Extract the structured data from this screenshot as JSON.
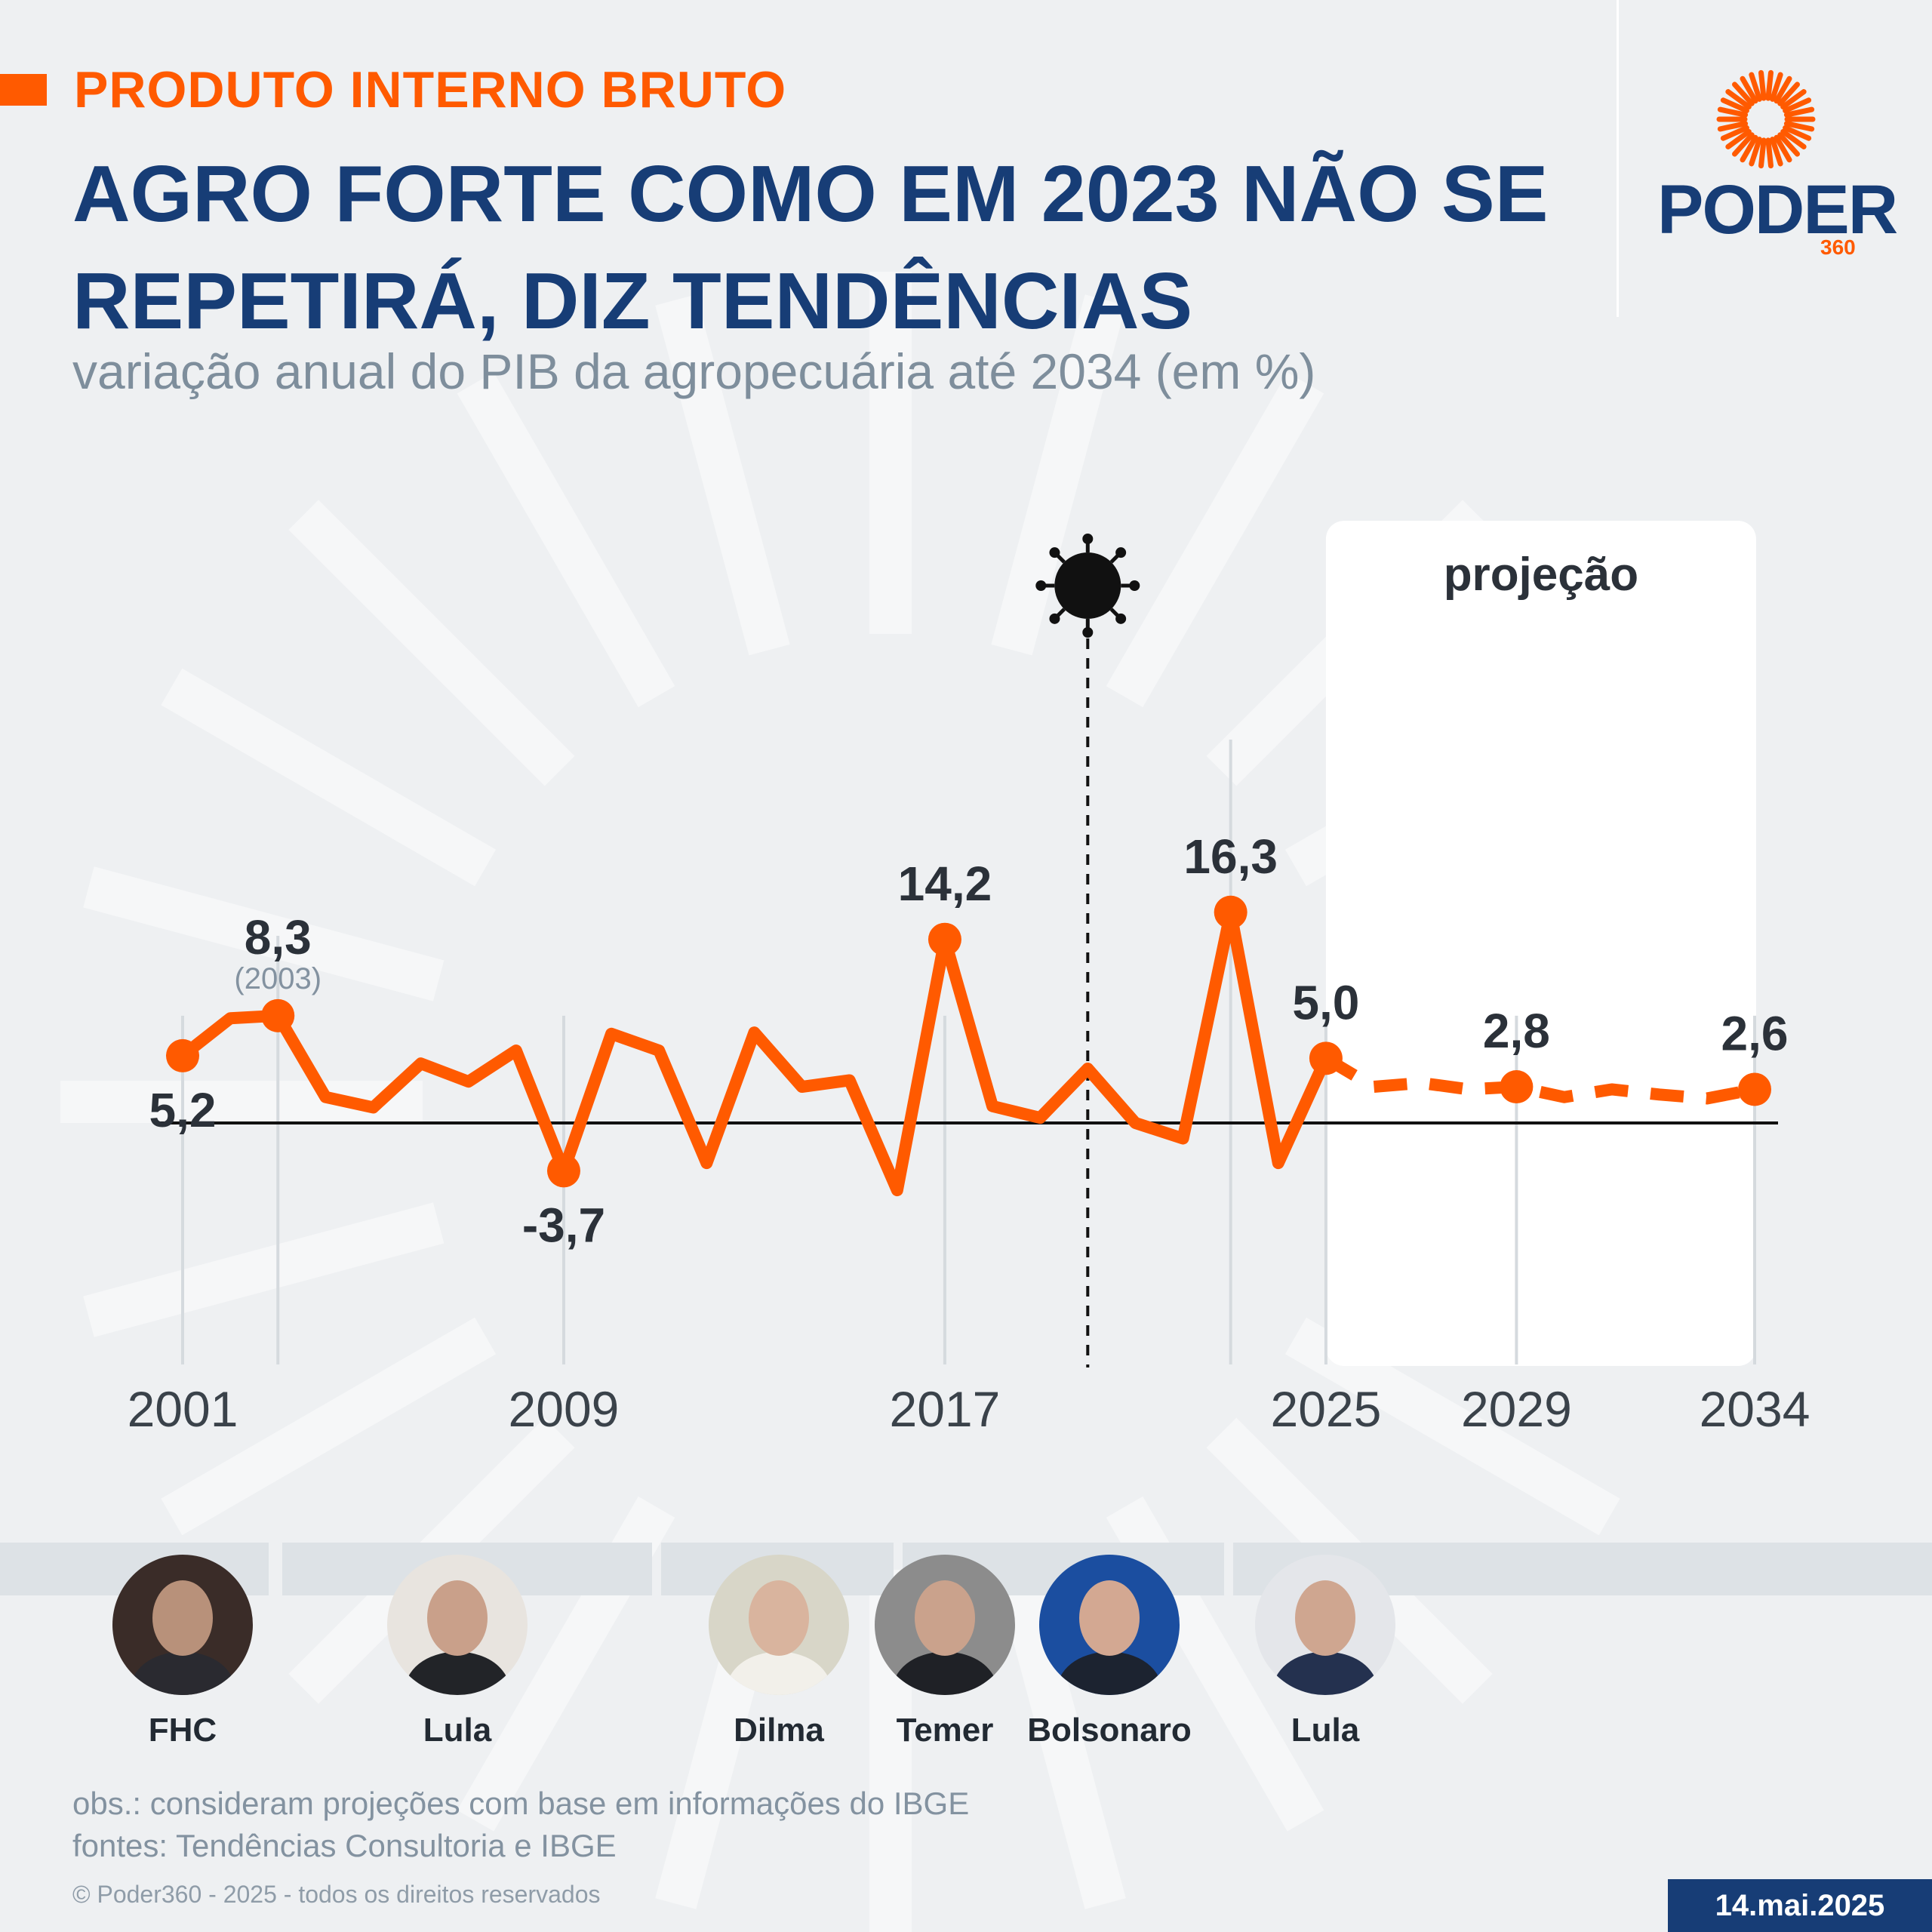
{
  "header": {
    "kicker": "PRODUTO INTERNO BRUTO",
    "title": "AGRO FORTE COMO EM 2023 NÃO SE REPETIRÁ, DIZ TENDÊNCIAS",
    "subtitle": "variação anual do PIB da agropecuária até 2034 (em %)"
  },
  "logo": {
    "word": "PODER",
    "sub": "360",
    "accent": "#ff5a00",
    "brand": "#173d76"
  },
  "chart_data": {
    "type": "line",
    "title": "",
    "xlabel": "",
    "ylabel": "",
    "x_ticks": [
      2001,
      2009,
      2017,
      2025,
      2029,
      2034
    ],
    "ylim": [
      -7,
      20
    ],
    "x": [
      2001,
      2002,
      2003,
      2004,
      2005,
      2006,
      2007,
      2008,
      2009,
      2010,
      2011,
      2012,
      2013,
      2014,
      2015,
      2016,
      2017,
      2018,
      2019,
      2020,
      2021,
      2022,
      2023,
      2024,
      2025,
      2026,
      2027,
      2028,
      2029,
      2030,
      2031,
      2032,
      2033,
      2034
    ],
    "values": [
      5.2,
      8.1,
      8.3,
      2.0,
      1.2,
      4.6,
      3.2,
      5.6,
      -3.7,
      6.9,
      5.6,
      -3.1,
      7.0,
      2.8,
      3.3,
      -5.2,
      14.2,
      1.3,
      0.4,
      4.2,
      0.0,
      -1.2,
      16.3,
      -3.1,
      5.0,
      2.8,
      3.1,
      2.6,
      2.8,
      2.0,
      2.6,
      2.2,
      1.9,
      2.6
    ],
    "projection_start": 2025,
    "projection_label": "projeção",
    "covid_year": 2020,
    "data_labels": [
      {
        "year": 2001,
        "text": "5,2",
        "pos": "below"
      },
      {
        "year": 2003,
        "text": "8,3",
        "note": "(2003)",
        "pos": "above"
      },
      {
        "year": 2009,
        "text": "-3,7",
        "pos": "below"
      },
      {
        "year": 2017,
        "text": "14,2",
        "pos": "above"
      },
      {
        "year": 2023,
        "text": "16,3",
        "pos": "above"
      },
      {
        "year": 2025,
        "text": "5,0",
        "pos": "above"
      },
      {
        "year": 2029,
        "text": "2,8",
        "pos": "above"
      },
      {
        "year": 2034,
        "text": "2,6",
        "pos": "above"
      }
    ],
    "marker_years": [
      2001,
      2003,
      2009,
      2017,
      2023,
      2025,
      2029,
      2034
    ],
    "line_color": "#ff5a00"
  },
  "presidents": [
    {
      "name": "FHC",
      "skin": "#b8917a",
      "bg": "#3a2c28",
      "suit": "#2a2a30"
    },
    {
      "name": "Lula",
      "skin": "#c9a08a",
      "bg": "#e8e4df",
      "suit": "#222428"
    },
    {
      "name": "Dilma",
      "skin": "#d9b49e",
      "bg": "#d8d6c8",
      "suit": "#f2f0ea"
    },
    {
      "name": "Temer",
      "skin": "#caa28c",
      "bg": "#8c8c8c",
      "suit": "#1f2126"
    },
    {
      "name": "Bolsonaro",
      "skin": "#d3a892",
      "bg": "#1b4ea0",
      "suit": "#1c2330"
    },
    {
      "name": "Lula",
      "skin": "#cfa690",
      "bg": "#e4e6ea",
      "suit": "#24314f"
    }
  ],
  "notes": {
    "obs": "obs.: consideram projeções com base em informações do IBGE",
    "sources": "fontes: Tendências Consultoria e IBGE"
  },
  "footer": {
    "copyright": "© Poder360 - 2025 - todos os direitos reservados",
    "date": "14.mai.2025"
  }
}
